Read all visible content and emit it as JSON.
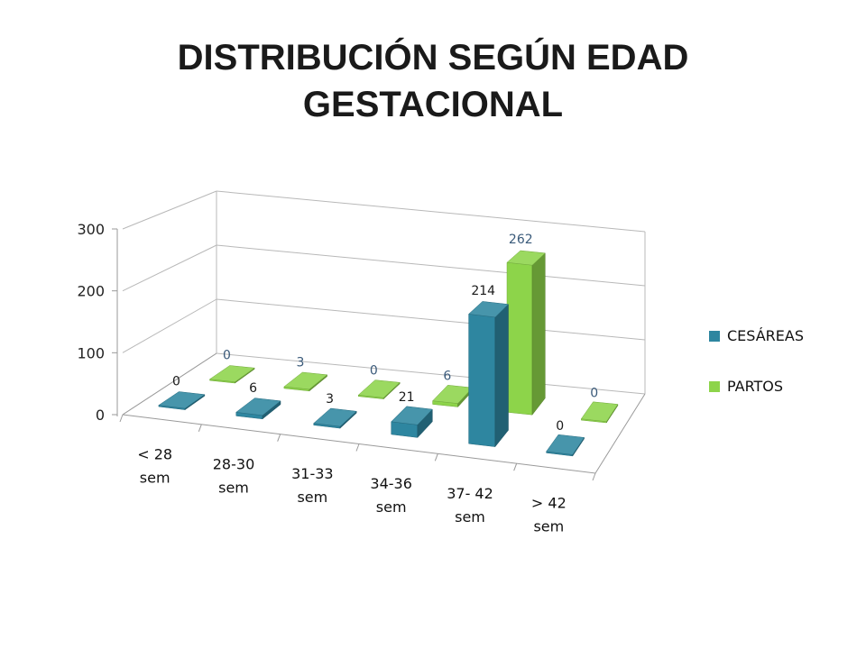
{
  "title_line1": "DISTRIBUCIÓN  SEGÚN EDAD",
  "title_line2": "GESTACIONAL",
  "chart_data": {
    "type": "bar",
    "style": "3d-clustered-column",
    "categories": [
      [
        "< 28",
        "sem"
      ],
      [
        "28-30",
        "sem"
      ],
      [
        "31-33",
        "sem"
      ],
      [
        "34-36",
        "sem"
      ],
      [
        "37- 42",
        "sem"
      ],
      [
        "> 42",
        "sem"
      ]
    ],
    "series": [
      {
        "name": "CESÁREAS",
        "values": [
          0,
          6,
          3,
          21,
          214,
          0
        ],
        "color": "#2e86a0",
        "label_color": "#1a1a1a"
      },
      {
        "name": "PARTOS",
        "values": [
          0,
          3,
          0,
          6,
          262,
          0
        ],
        "color": "#8dd44a",
        "label_color": "#3a5a7a"
      }
    ],
    "ylim": [
      0,
      300
    ],
    "yticks": [
      0,
      100,
      200,
      300
    ],
    "grid": true,
    "legend": "right"
  }
}
